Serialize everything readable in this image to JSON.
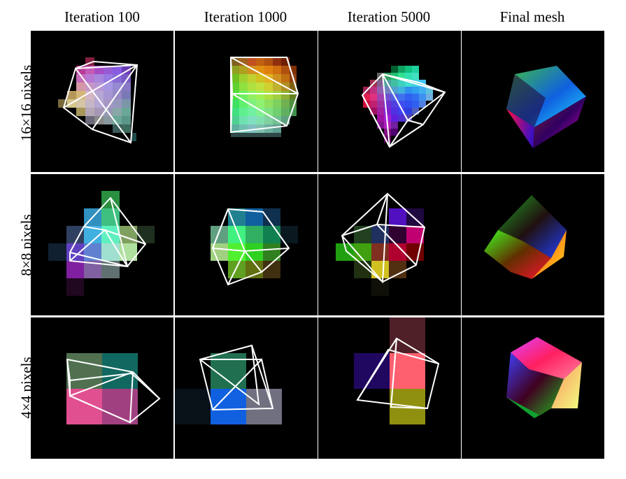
{
  "figure": {
    "column_headers": [
      "Iteration 100",
      "Iteration 1000",
      "Iteration 5000",
      "Final mesh"
    ],
    "row_labels": [
      "16×16 pixels",
      "8×8 pixels",
      "4×4 pixels"
    ]
  },
  "colors": {
    "panel_background": "#000000",
    "wireframe": "#ffffff",
    "separator": "#ffffff"
  },
  "panels": [
    {
      "row": "16x16",
      "col": "iteration-100",
      "content": "pixelated-render-with-wireframe"
    },
    {
      "row": "16x16",
      "col": "iteration-1000",
      "content": "pixelated-render-with-wireframe"
    },
    {
      "row": "16x16",
      "col": "iteration-5000",
      "content": "pixelated-render-with-wireframe"
    },
    {
      "row": "16x16",
      "col": "final-mesh",
      "content": "shaded-cube"
    },
    {
      "row": "8x8",
      "col": "iteration-100",
      "content": "pixelated-render-with-wireframe"
    },
    {
      "row": "8x8",
      "col": "iteration-1000",
      "content": "pixelated-render-with-wireframe"
    },
    {
      "row": "8x8",
      "col": "iteration-5000",
      "content": "pixelated-render-with-wireframe"
    },
    {
      "row": "8x8",
      "col": "final-mesh",
      "content": "shaded-cube"
    },
    {
      "row": "4x4",
      "col": "iteration-100",
      "content": "pixelated-render-with-wireframe"
    },
    {
      "row": "4x4",
      "col": "iteration-1000",
      "content": "pixelated-render-with-wireframe"
    },
    {
      "row": "4x4",
      "col": "iteration-5000",
      "content": "pixelated-render-with-wireframe"
    },
    {
      "row": "4x4",
      "col": "final-mesh",
      "content": "shaded-cube"
    }
  ]
}
